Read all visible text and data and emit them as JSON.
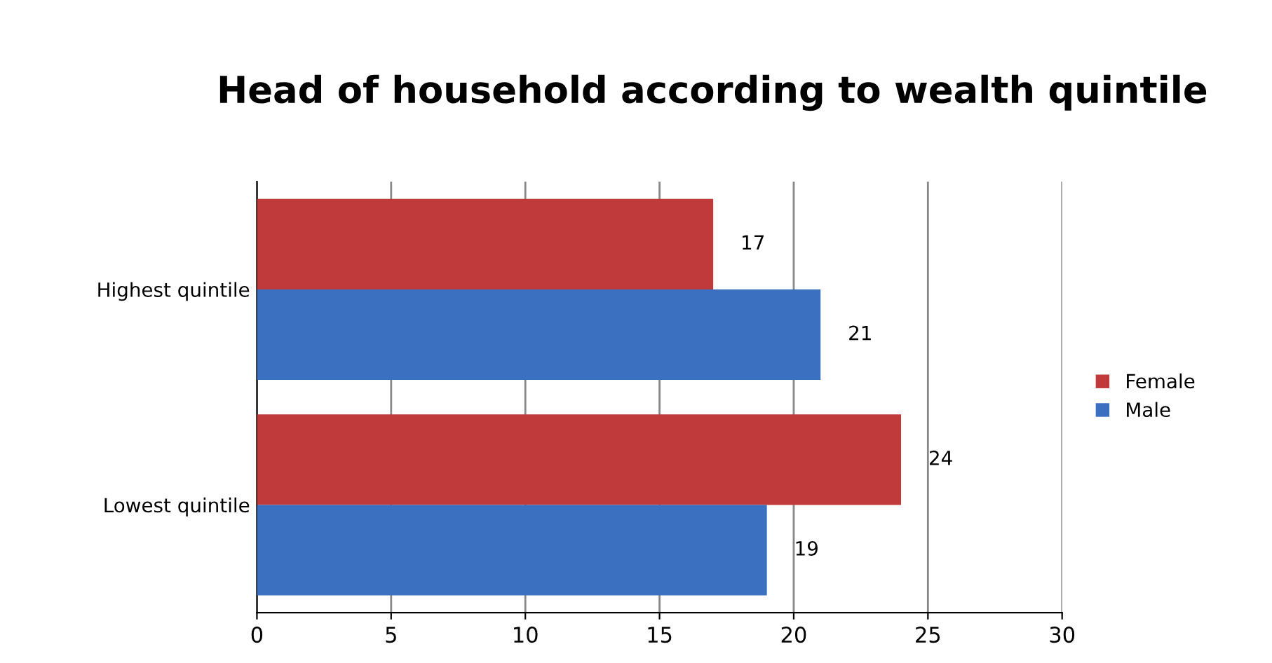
{
  "chart_data": {
    "type": "bar",
    "orientation": "horizontal",
    "title": "Head of household according to wealth quintile",
    "categories": [
      "Highest quintile",
      "Lowest quintile"
    ],
    "series": [
      {
        "name": "Female",
        "color": "#c0393b",
        "values": [
          17,
          24
        ]
      },
      {
        "name": "Male",
        "color": "#3b6fc0",
        "values": [
          21,
          19
        ]
      }
    ],
    "xlim": [
      0,
      30
    ],
    "xticks": [
      0,
      5,
      10,
      15,
      20,
      25,
      30
    ],
    "grid": "x",
    "legend": "right",
    "data_labels": true
  }
}
